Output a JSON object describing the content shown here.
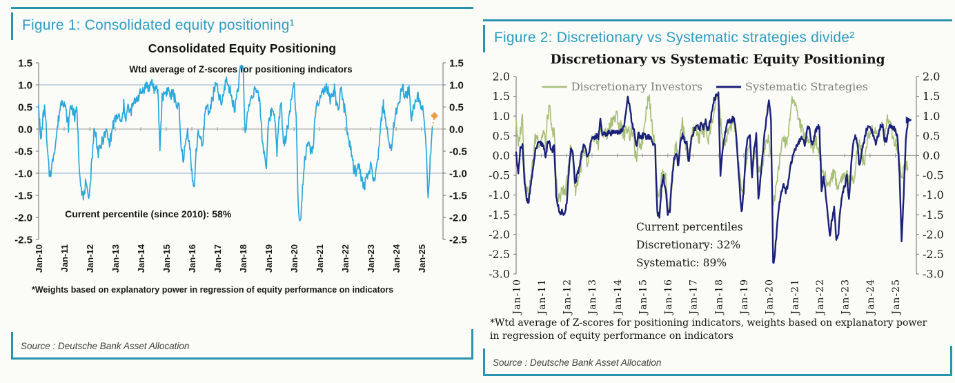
{
  "theme": {
    "border_teal": "#2a93ad",
    "caption_teal": "#2f9cc2",
    "background": "#fbfbf7"
  },
  "figure1": {
    "caption": "Figure 1: Consolidated equity positioning¹",
    "chart_title": "Consolidated Equity Positioning",
    "footnote": "*Weights based on explanatory power in regression of equity performance on indicators",
    "source": "Source : Deutsche Bank Asset Allocation"
  },
  "figure2": {
    "caption": "Figure 2: Discretionary vs Systematic strategies divide²",
    "chart_title": "Discretionary  vs Systematic Equity Positioning",
    "footnote": "*Wtd average of Z-scores for positioning indicators, weights based on explanatory power in regression of equity performance on indicators",
    "source": "Source : Deutsche Bank Asset Allocation"
  },
  "chart_data": [
    {
      "type": "line",
      "title": "Consolidated Equity Positioning",
      "subtitle": "Wtd average of Z-scores for positioning indicators",
      "x_unit": "monthly",
      "x_start": "Jan-10",
      "x_end": "Jul-25",
      "x_tick_labels": [
        "Jan-10",
        "Jan-11",
        "Jan-12",
        "Jan-13",
        "Jan-14",
        "Jan-15",
        "Jan-16",
        "Jan-17",
        "Jan-18",
        "Jan-19",
        "Jan-20",
        "Jan-21",
        "Jan-22",
        "Jan-23",
        "Jan-24",
        "Jan-25"
      ],
      "ylim": [
        -2.5,
        1.5
      ],
      "y_tick_step": 0.5,
      "gridlines_y": [
        1.0,
        0.0,
        -1.0
      ],
      "grid_on": true,
      "legend_position": "none",
      "annotation": {
        "lines": [
          "Current percentile (since 2010): 58%"
        ],
        "x_frac": 0.065,
        "y_value": -2.0
      },
      "series": [
        {
          "name": "Consolidated Equity Positioning",
          "color": "#29a8dc",
          "end_marker": {
            "shape": "diamond",
            "color": "#e2a14c"
          },
          "dotted_tail_months": 1,
          "values": [
            0.55,
            -0.3,
            0.25,
            0.5,
            -0.45,
            -1,
            -0.95,
            -0.55,
            -0.3,
            0.1,
            0.45,
            0.7,
            0.6,
            0.35,
            0.05,
            0.55,
            0.45,
            0.25,
            0.45,
            -0.75,
            -1.3,
            -1.6,
            -1.25,
            -1.5,
            -1.4,
            -0.7,
            -0.05,
            -0.15,
            -0.55,
            -0.45,
            -0.25,
            -0.15,
            -0.05,
            -0.3,
            -0.2,
            0.1,
            0.2,
            0.3,
            0.25,
            0.1,
            0.55,
            0.25,
            0.5,
            0.35,
            0.5,
            0.6,
            0.7,
            0.75,
            0.8,
            0.9,
            0.95,
            1,
            0.9,
            1.1,
            0.95,
            0.85,
            0.9,
            -0.45,
            0.7,
            0.8,
            0.85,
            0.9,
            0.75,
            0.8,
            0.7,
            0.55,
            0.45,
            -0.5,
            -0.65,
            -0.35,
            -0.05,
            -0.35,
            -1,
            -1.4,
            -0.55,
            0,
            -0.25,
            -0.45,
            0.3,
            0.55,
            0.4,
            0.55,
            0.75,
            1,
            0.9,
            0.7,
            0.55,
            0.8,
            1.15,
            1,
            0.85,
            0.7,
            0.4,
            0.75,
            1.05,
            1.4,
            1.45,
            -0.1,
            0.3,
            0.55,
            0.75,
            0.85,
            0.9,
            0.75,
            0.6,
            -0.2,
            -0.55,
            -0.8,
            0.1,
            0.35,
            0.45,
            0.3,
            -0.5,
            0.2,
            0.65,
            -0.4,
            -0.2,
            0.05,
            0.4,
            0.8,
            0.95,
            0.4,
            -1.8,
            -2.1,
            -1.3,
            -0.7,
            -0.45,
            -0.3,
            -0.55,
            -0.35,
            0.3,
            0.55,
            0.65,
            0.75,
            0.85,
            0.95,
            0.85,
            0.6,
            0.75,
            0.9,
            0.55,
            0.35,
            1,
            0.6,
            0.4,
            0,
            -0.35,
            -0.55,
            -0.9,
            -0.95,
            -0.85,
            -0.9,
            -1.2,
            -1.35,
            -1,
            -1.1,
            -0.85,
            -1,
            -1.3,
            -0.75,
            -0.45,
            0.2,
            0.55,
            0.25,
            -0.1,
            -0.55,
            -0.3,
            0.15,
            0.35,
            0.55,
            0.8,
            0.95,
            0.7,
            0.8,
            0.9,
            0.25,
            0.45,
            0.6,
            0.75,
            0.65,
            0.55,
            0.4,
            -0.3,
            -1.6,
            -0.7,
            0.05,
            0.3
          ]
        }
      ]
    },
    {
      "type": "line",
      "title": "Discretionary  vs Systematic Equity Positioning",
      "x_unit": "monthly",
      "x_start": "Jan-10",
      "x_end": "Jul-25",
      "x_tick_labels": [
        "Jan-10",
        "Jan-11",
        "Jan-12",
        "Jan-13",
        "Jan-14",
        "Jan-15",
        "Jan-16",
        "Jan-17",
        "Jan-18",
        "Jan-19",
        "Jan-20",
        "Jan-21",
        "Jan-22",
        "Jan-23",
        "Jan-24",
        "Jan-25"
      ],
      "ylim": [
        -3.0,
        2.0
      ],
      "y_tick_step": 0.5,
      "gridlines_y": [
        0.0
      ],
      "grid_on": true,
      "legend_position": "top",
      "annotation": {
        "lines": [
          "Current percentiles",
          "Discretionary: 32%",
          "Systematic: 89%"
        ],
        "x_frac": 0.3,
        "y_value": -1.9
      },
      "series": [
        {
          "name": "Discretionary Investors",
          "color": "#a7bf77",
          "values": [
            0.9,
            0.2,
            0.6,
            1,
            -0.4,
            -0.8,
            -1,
            -0.6,
            -0.1,
            0.4,
            0.5,
            0.3,
            0.45,
            0.6,
            0.3,
            1.05,
            1.15,
            0.55,
            0.7,
            -0.6,
            -1,
            -1.1,
            -0.8,
            -1,
            -0.7,
            -0.1,
            0.2,
            -0.1,
            -0.9,
            -0.7,
            -0.45,
            -0.2,
            0.05,
            -0.05,
            -0.3,
            0.15,
            0.4,
            0.25,
            0.55,
            0.2,
            0.85,
            0.35,
            0.7,
            0.45,
            0.65,
            0.85,
            0.95,
            0.9,
            1.05,
            0.65,
            0.85,
            0.5,
            0.6,
            0.75,
            0.5,
            0.65,
            0.4,
            -0.2,
            0.4,
            0.25,
            0.4,
            0.9,
            1.25,
            1.55,
            1,
            0.6,
            0.3,
            -0.8,
            -1.05,
            -0.6,
            -0.3,
            -0.6,
            -1.2,
            -1.5,
            -0.7,
            0,
            0.3,
            -0.3,
            0.5,
            0.8,
            0.4,
            0.2,
            -0.1,
            0.4,
            0.6,
            0.8,
            0.5,
            0.4,
            0.7,
            0.5,
            0.8,
            0.4,
            0.6,
            0.9,
            1.1,
            1.3,
            1.6,
            0.9,
            0.4,
            0.2,
            0.5,
            0.6,
            0.7,
            0.9,
            0.7,
            0,
            -0.4,
            -1,
            -0.7,
            -0.2,
            0,
            0.3,
            -0.4,
            -0.1,
            0.3,
            -0.5,
            -0.3,
            -0.2,
            0.2,
            0.45,
            0.4,
            0.1,
            -1.3,
            -0.9,
            -0.5,
            -0.1,
            0.2,
            0.5,
            0.3,
            0.4,
            1,
            1.4,
            1.45,
            1.2,
            0.9,
            0.8,
            0.6,
            0.45,
            0.4,
            0.5,
            0.3,
            0.2,
            0.4,
            0.25,
            0.1,
            -0.3,
            -0.45,
            -0.6,
            -0.75,
            -0.65,
            -0.5,
            -0.4,
            -0.7,
            -0.8,
            -0.6,
            -0.5,
            -0.55,
            -0.4,
            -0.65,
            -0.55,
            -0.6,
            -0.35,
            0.15,
            0.3,
            0.1,
            -0.25,
            0.1,
            0.45,
            0.55,
            0.65,
            0.75,
            0.5,
            0.6,
            0.7,
            0.85,
            0.4,
            0.9,
            1,
            0.7,
            0.5,
            0.35,
            0.2,
            -0.15,
            -0.55,
            -0.35,
            -0.2,
            -0.3
          ]
        },
        {
          "name": "Systematic Strategies",
          "color": "#1b2079",
          "end_marker": {
            "shape": "triangle",
            "color": "#1b2079"
          },
          "values": [
            0.1,
            -0.5,
            0.15,
            0.25,
            -0.7,
            -1.1,
            -1.15,
            -0.7,
            -0.4,
            0.1,
            0.25,
            0.3,
            0.3,
            0.25,
            0,
            0.3,
            0.3,
            0.1,
            0.3,
            -1,
            -1.3,
            -1.55,
            -1.4,
            -1.5,
            -1.2,
            -0.4,
            0.15,
            0,
            -0.7,
            -0.5,
            -0.3,
            0.05,
            0.25,
            0.15,
            0,
            0.2,
            0.4,
            0.45,
            0.5,
            0.45,
            0.9,
            0.45,
            0.6,
            0.5,
            0.6,
            0.55,
            0.6,
            0.65,
            0.6,
            0.55,
            0.65,
            0.7,
            1,
            1.5,
            1.2,
            0.8,
            0.6,
            0.2,
            0.55,
            0.45,
            0.5,
            0.55,
            0.45,
            0.5,
            0.4,
            0.3,
            0.25,
            -1.45,
            -1.55,
            -0.8,
            -0.55,
            -0.9,
            -1.5,
            -1.4,
            -0.6,
            -0.1,
            0.1,
            -0.3,
            0.3,
            0.5,
            0.35,
            0.3,
            -0.2,
            0.4,
            0.55,
            0.7,
            0.75,
            0.65,
            0.85,
            0.7,
            0.9,
            0.6,
            0.85,
            1.1,
            1.4,
            1.55,
            1.6,
            -0.45,
            0.1,
            0.5,
            0.8,
            0.9,
            0.85,
            0.95,
            0.85,
            0.1,
            -0.7,
            -1.45,
            -0.9,
            0,
            0.45,
            0.5,
            -0.6,
            0.2,
            0.55,
            -1.1,
            -0.6,
            0,
            0.6,
            1,
            1.45,
            0.9,
            -2.75,
            -2.4,
            -1.7,
            -1.2,
            -0.9,
            -0.7,
            -0.9,
            -0.75,
            -0.3,
            -0.1,
            0.1,
            0.2,
            0.3,
            0.4,
            0.45,
            0.3,
            0.6,
            0.75,
            0.4,
            0.3,
            0.6,
            0.75,
            0.7,
            -0.9,
            -0.5,
            -1,
            -1.6,
            -2,
            -1.6,
            -1.3,
            -2.1,
            -2,
            -1.3,
            -0.9,
            -0.8,
            -0.5,
            -1.1,
            -0.3,
            0.3,
            0.5,
            0.3,
            -0.3,
            0.1,
            0.3,
            0.6,
            0.75,
            0.75,
            0.6,
            0.4,
            0.3,
            0.55,
            0.75,
            0.8,
            0.3,
            0.45,
            0.7,
            0.75,
            0.7,
            0.65,
            0.5,
            -0.5,
            -2.2,
            -1,
            0.4,
            0.9
          ]
        }
      ]
    }
  ]
}
